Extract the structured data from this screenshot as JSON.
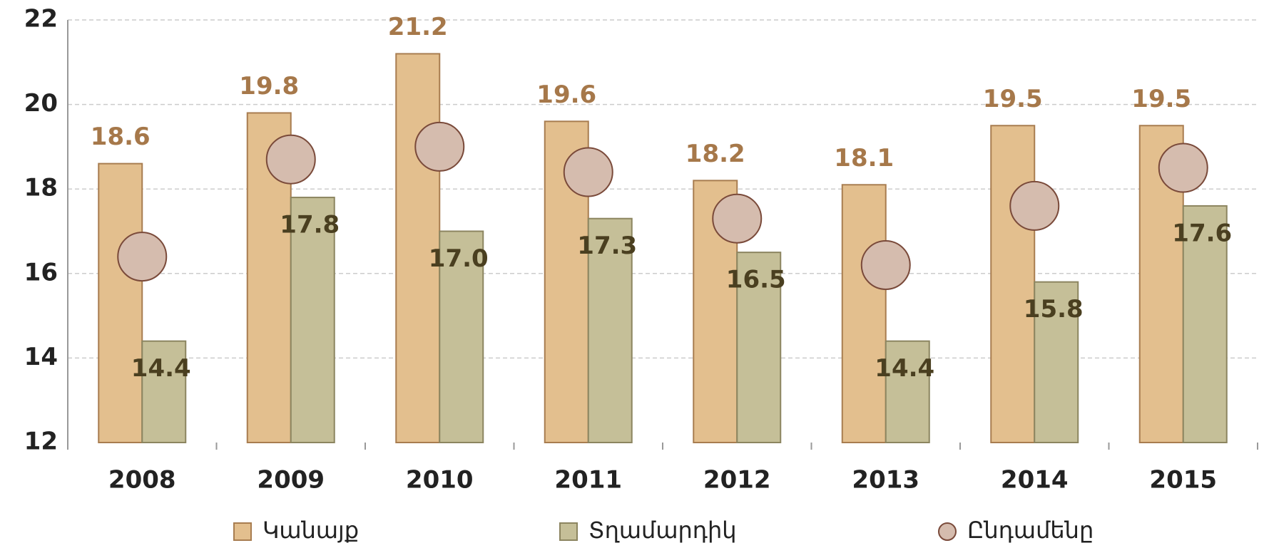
{
  "chart_data": {
    "type": "bar",
    "categories": [
      "2008",
      "2009",
      "2010",
      "2011",
      "2012",
      "2013",
      "2014",
      "2015"
    ],
    "series": [
      {
        "name": "Կանայք",
        "type": "bar",
        "color": "#e3bf8e",
        "values": [
          18.6,
          19.8,
          21.2,
          19.6,
          18.2,
          18.1,
          19.5,
          19.5
        ]
      },
      {
        "name": "Տղամարդիկ",
        "type": "bar",
        "color": "#c5bf98",
        "values": [
          14.4,
          17.8,
          17.0,
          17.3,
          16.5,
          14.4,
          15.8,
          17.6
        ],
        "value_labels": [
          "14.4",
          "17.8",
          "17.0",
          "17.3",
          "16.5",
          "14.4",
          "15.8",
          "17.6"
        ]
      },
      {
        "name": "Ընդամենը",
        "type": "dot",
        "color": "#d5bcae",
        "values": [
          16.4,
          18.7,
          19.0,
          18.4,
          17.3,
          16.2,
          17.6,
          18.5
        ]
      }
    ],
    "ylim": [
      12,
      22
    ],
    "yticks": [
      12,
      14,
      16,
      18,
      20,
      22
    ],
    "grid": true,
    "legend": "bottom"
  }
}
